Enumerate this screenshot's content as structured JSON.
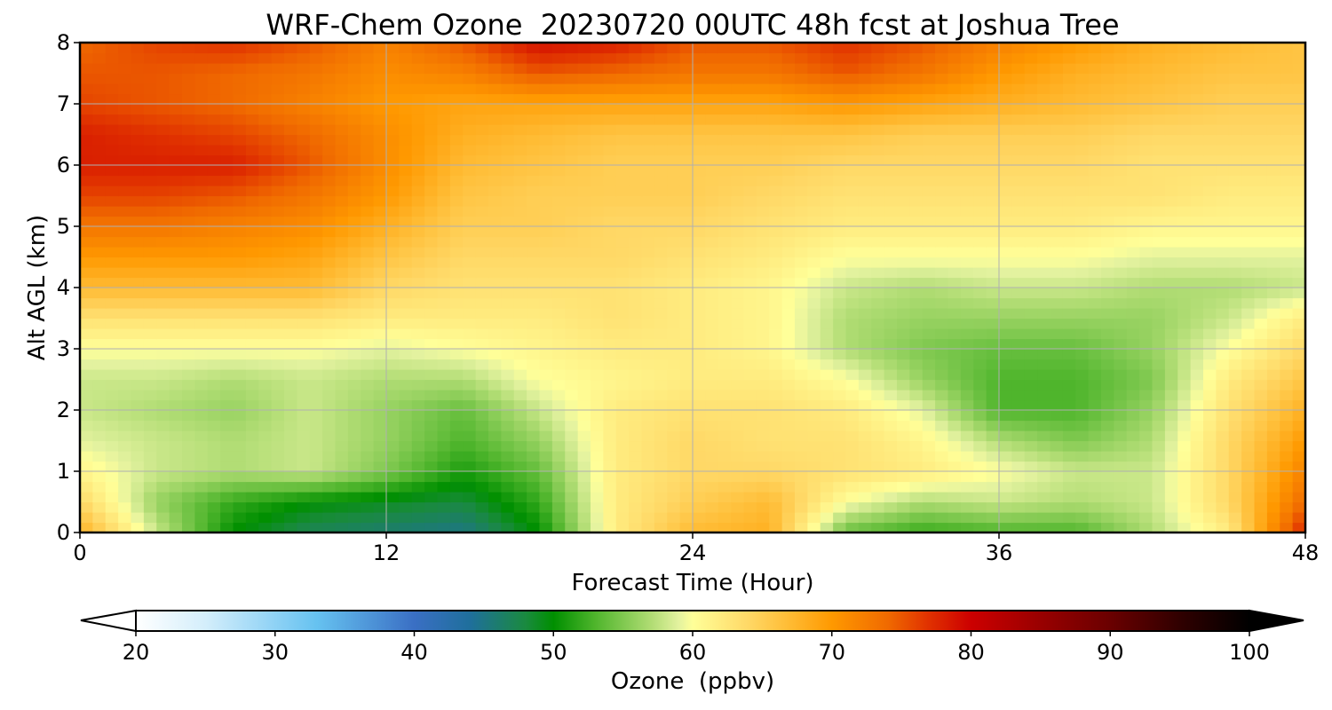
{
  "chart_data": {
    "type": "heatmap",
    "title": "WRF-Chem Ozone  20230720 00UTC 48h fcst at Joshua Tree",
    "xlabel": "Forecast Time (Hour)",
    "ylabel": "Alt AGL (km)",
    "xlim": [
      0,
      48
    ],
    "ylim": [
      0,
      8
    ],
    "x_ticks": [
      0,
      12,
      24,
      36,
      48
    ],
    "y_ticks": [
      0,
      1,
      2,
      3,
      4,
      5,
      6,
      7,
      8
    ],
    "grid": true,
    "x": [
      0,
      3,
      6,
      9,
      12,
      15,
      18,
      21,
      24,
      27,
      30,
      33,
      36,
      39,
      42,
      45,
      48
    ],
    "y": [
      0,
      0.5,
      1,
      1.5,
      2,
      2.5,
      3,
      3.5,
      4,
      4.5,
      5,
      5.5,
      6,
      6.5,
      7,
      7.5,
      8
    ],
    "z": [
      [
        68,
        58,
        50,
        47,
        46,
        45,
        50,
        62,
        67,
        68,
        54,
        52,
        53,
        53,
        57,
        62,
        78
      ],
      [
        64,
        56,
        52,
        50,
        49,
        48,
        52,
        62,
        65,
        67,
        60,
        57,
        58,
        57,
        58,
        64,
        74
      ],
      [
        61,
        58,
        57,
        58,
        55,
        51,
        54,
        62,
        64,
        64,
        63,
        62,
        60,
        58,
        58,
        64,
        72
      ],
      [
        59,
        58,
        57,
        58,
        56,
        53,
        56,
        62,
        64,
        63,
        63,
        61,
        57,
        55,
        57,
        64,
        70
      ],
      [
        58,
        57,
        56,
        58,
        56,
        54,
        58,
        62,
        63,
        63,
        62,
        59,
        53,
        53,
        56,
        63,
        68
      ],
      [
        58,
        58,
        57,
        58,
        57,
        57,
        60,
        61,
        62,
        62,
        60,
        56,
        53,
        53,
        55,
        62,
        66
      ],
      [
        60,
        60,
        60,
        60,
        59,
        60,
        61,
        62,
        62,
        61,
        57,
        55,
        54,
        54,
        56,
        60,
        64
      ],
      [
        63,
        63,
        63,
        63,
        62,
        62,
        62,
        63,
        62,
        61,
        57,
        56,
        56,
        56,
        56,
        58,
        62
      ],
      [
        67,
        67,
        67,
        67,
        64,
        63,
        63,
        63,
        62,
        61,
        58,
        57,
        58,
        58,
        57,
        57,
        58
      ],
      [
        70,
        70,
        70,
        69,
        66,
        64,
        64,
        64,
        63,
        62,
        60,
        60,
        60,
        60,
        59,
        59,
        59
      ],
      [
        73,
        73,
        72,
        71,
        68,
        65,
        65,
        64,
        64,
        63,
        62,
        62,
        62,
        62,
        61,
        61,
        61
      ],
      [
        76,
        76,
        75,
        73,
        70,
        66,
        65,
        65,
        65,
        64,
        63,
        63,
        63,
        63,
        63,
        62,
        62
      ],
      [
        78,
        78,
        78,
        75,
        71,
        67,
        66,
        65,
        65,
        65,
        64,
        64,
        64,
        64,
        63,
        63,
        63
      ],
      [
        78,
        77,
        76,
        74,
        71,
        68,
        67,
        66,
        66,
        66,
        66,
        65,
        65,
        65,
        64,
        64,
        64
      ],
      [
        76,
        75,
        74,
        72,
        70,
        69,
        69,
        69,
        69,
        69,
        70,
        69,
        68,
        67,
        66,
        65,
        65
      ],
      [
        75,
        75,
        74,
        73,
        71,
        72,
        75,
        74,
        73,
        73,
        75,
        73,
        70,
        68,
        67,
        66,
        66
      ],
      [
        74,
        76,
        77,
        75,
        72,
        75,
        79,
        78,
        75,
        75,
        77,
        75,
        72,
        70,
        68,
        67,
        66
      ]
    ],
    "colorbar": {
      "label": "Ozone  (ppbv)",
      "min": 20,
      "max": 100,
      "ticks": [
        20,
        30,
        40,
        50,
        60,
        70,
        80,
        90,
        100
      ],
      "extend": "both",
      "stops": [
        {
          "v": 20,
          "c": "#ffffff"
        },
        {
          "v": 25,
          "c": "#d4eefb"
        },
        {
          "v": 30,
          "c": "#8fd2f5"
        },
        {
          "v": 33,
          "c": "#66c2f0"
        },
        {
          "v": 40,
          "c": "#3a6fc4"
        },
        {
          "v": 44,
          "c": "#1f6f9c"
        },
        {
          "v": 48,
          "c": "#1a8a3f"
        },
        {
          "v": 50,
          "c": "#008f00"
        },
        {
          "v": 53,
          "c": "#4fb52c"
        },
        {
          "v": 57,
          "c": "#b0dc73"
        },
        {
          "v": 59,
          "c": "#e3f29f"
        },
        {
          "v": 60,
          "c": "#ffff99"
        },
        {
          "v": 64,
          "c": "#ffd866"
        },
        {
          "v": 67,
          "c": "#ffbb33"
        },
        {
          "v": 70,
          "c": "#ff9900"
        },
        {
          "v": 74,
          "c": "#f06a00"
        },
        {
          "v": 77,
          "c": "#e03000"
        },
        {
          "v": 80,
          "c": "#cc0000"
        },
        {
          "v": 85,
          "c": "#990000"
        },
        {
          "v": 90,
          "c": "#6a0000"
        },
        {
          "v": 95,
          "c": "#300000"
        },
        {
          "v": 100,
          "c": "#000000"
        }
      ]
    }
  }
}
